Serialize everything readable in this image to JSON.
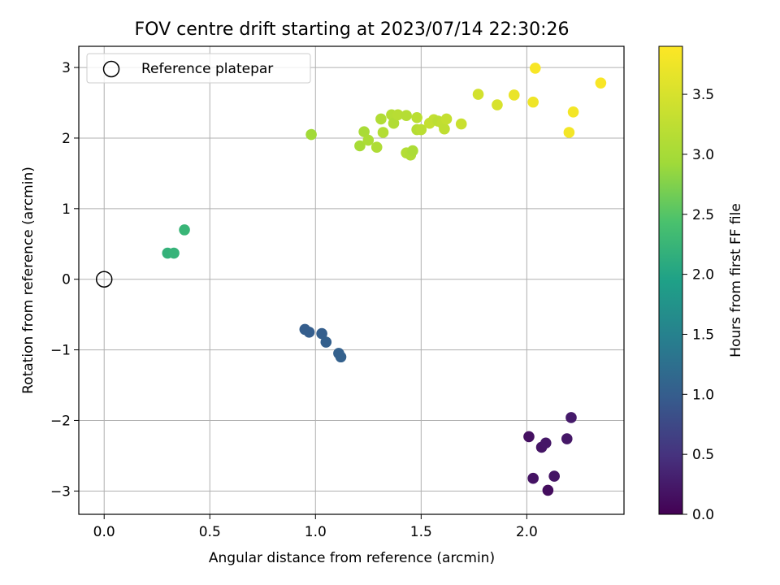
{
  "chart_data": {
    "type": "scatter",
    "title": "FOV centre drift starting at 2023/07/14 22:30:26",
    "xlabel": "Angular distance from reference (arcmin)",
    "ylabel": "Rotation from reference (arcmin)",
    "xlim": [
      -0.12,
      2.46
    ],
    "ylim": [
      -3.33,
      3.3
    ],
    "xticks": [
      0.0,
      0.5,
      1.0,
      1.5,
      2.0
    ],
    "xtick_labels": [
      "0.0",
      "0.5",
      "1.0",
      "1.5",
      "2.0"
    ],
    "yticks": [
      -3,
      -2,
      -1,
      0,
      1,
      2,
      3
    ],
    "ytick_labels": [
      "−3",
      "−2",
      "−1",
      "0",
      "1",
      "2",
      "3"
    ],
    "grid": true,
    "legend": {
      "position": "top-left",
      "entries": [
        {
          "label": "Reference platepar",
          "marker": "open-circle"
        }
      ]
    },
    "reference_point": {
      "x": 0.0,
      "y": 0.0
    },
    "colorbar": {
      "label": "Hours from first FF file",
      "colormap": "viridis",
      "range": [
        0.0,
        3.9
      ],
      "ticks": [
        0.0,
        0.5,
        1.0,
        1.5,
        2.0,
        2.5,
        3.0,
        3.5
      ],
      "tick_labels": [
        "0.0",
        "0.5",
        "1.0",
        "1.5",
        "2.0",
        "2.5",
        "3.0",
        "3.5"
      ]
    },
    "points": [
      {
        "x": 2.01,
        "y": -2.23,
        "hours": 0.15
      },
      {
        "x": 2.03,
        "y": -2.82,
        "hours": 0.18
      },
      {
        "x": 2.07,
        "y": -2.38,
        "hours": 0.2
      },
      {
        "x": 2.09,
        "y": -2.32,
        "hours": 0.22
      },
      {
        "x": 2.1,
        "y": -2.99,
        "hours": 0.12
      },
      {
        "x": 2.13,
        "y": -2.79,
        "hours": 0.2
      },
      {
        "x": 2.19,
        "y": -2.26,
        "hours": 0.22
      },
      {
        "x": 2.21,
        "y": -1.96,
        "hours": 0.25
      },
      {
        "x": 0.95,
        "y": -0.71,
        "hours": 1.0
      },
      {
        "x": 0.97,
        "y": -0.75,
        "hours": 1.0
      },
      {
        "x": 1.03,
        "y": -0.77,
        "hours": 1.02
      },
      {
        "x": 1.05,
        "y": -0.89,
        "hours": 1.03
      },
      {
        "x": 1.11,
        "y": -1.05,
        "hours": 1.05
      },
      {
        "x": 1.12,
        "y": -1.1,
        "hours": 1.05
      },
      {
        "x": 0.3,
        "y": 0.37,
        "hours": 2.2
      },
      {
        "x": 0.33,
        "y": 0.37,
        "hours": 2.22
      },
      {
        "x": 0.38,
        "y": 0.7,
        "hours": 2.25
      },
      {
        "x": 0.98,
        "y": 2.05,
        "hours": 2.95
      },
      {
        "x": 1.21,
        "y": 1.89,
        "hours": 3.0
      },
      {
        "x": 1.23,
        "y": 2.09,
        "hours": 3.02
      },
      {
        "x": 1.25,
        "y": 1.97,
        "hours": 3.05
      },
      {
        "x": 1.29,
        "y": 1.87,
        "hours": 3.08
      },
      {
        "x": 1.31,
        "y": 2.27,
        "hours": 3.1
      },
      {
        "x": 1.32,
        "y": 2.08,
        "hours": 3.12
      },
      {
        "x": 1.36,
        "y": 2.33,
        "hours": 3.15
      },
      {
        "x": 1.37,
        "y": 2.21,
        "hours": 3.1
      },
      {
        "x": 1.39,
        "y": 2.33,
        "hours": 3.18
      },
      {
        "x": 1.43,
        "y": 2.32,
        "hours": 3.15
      },
      {
        "x": 1.43,
        "y": 1.79,
        "hours": 3.12
      },
      {
        "x": 1.45,
        "y": 1.76,
        "hours": 3.1
      },
      {
        "x": 1.46,
        "y": 1.82,
        "hours": 3.05
      },
      {
        "x": 1.48,
        "y": 2.29,
        "hours": 3.2
      },
      {
        "x": 1.48,
        "y": 2.12,
        "hours": 3.15
      },
      {
        "x": 1.5,
        "y": 2.12,
        "hours": 3.2
      },
      {
        "x": 1.54,
        "y": 2.21,
        "hours": 3.3
      },
      {
        "x": 1.56,
        "y": 2.26,
        "hours": 3.28
      },
      {
        "x": 1.58,
        "y": 2.24,
        "hours": 3.22
      },
      {
        "x": 1.6,
        "y": 2.21,
        "hours": 3.26
      },
      {
        "x": 1.61,
        "y": 2.13,
        "hours": 3.25
      },
      {
        "x": 1.62,
        "y": 2.27,
        "hours": 3.3
      },
      {
        "x": 1.69,
        "y": 2.2,
        "hours": 3.35
      },
      {
        "x": 1.77,
        "y": 2.62,
        "hours": 3.45
      },
      {
        "x": 1.86,
        "y": 2.47,
        "hours": 3.5
      },
      {
        "x": 1.94,
        "y": 2.61,
        "hours": 3.7
      },
      {
        "x": 2.03,
        "y": 2.51,
        "hours": 3.75
      },
      {
        "x": 2.04,
        "y": 2.99,
        "hours": 3.85
      },
      {
        "x": 2.2,
        "y": 2.08,
        "hours": 3.8
      },
      {
        "x": 2.22,
        "y": 2.37,
        "hours": 3.8
      },
      {
        "x": 2.35,
        "y": 2.78,
        "hours": 3.85
      }
    ]
  }
}
